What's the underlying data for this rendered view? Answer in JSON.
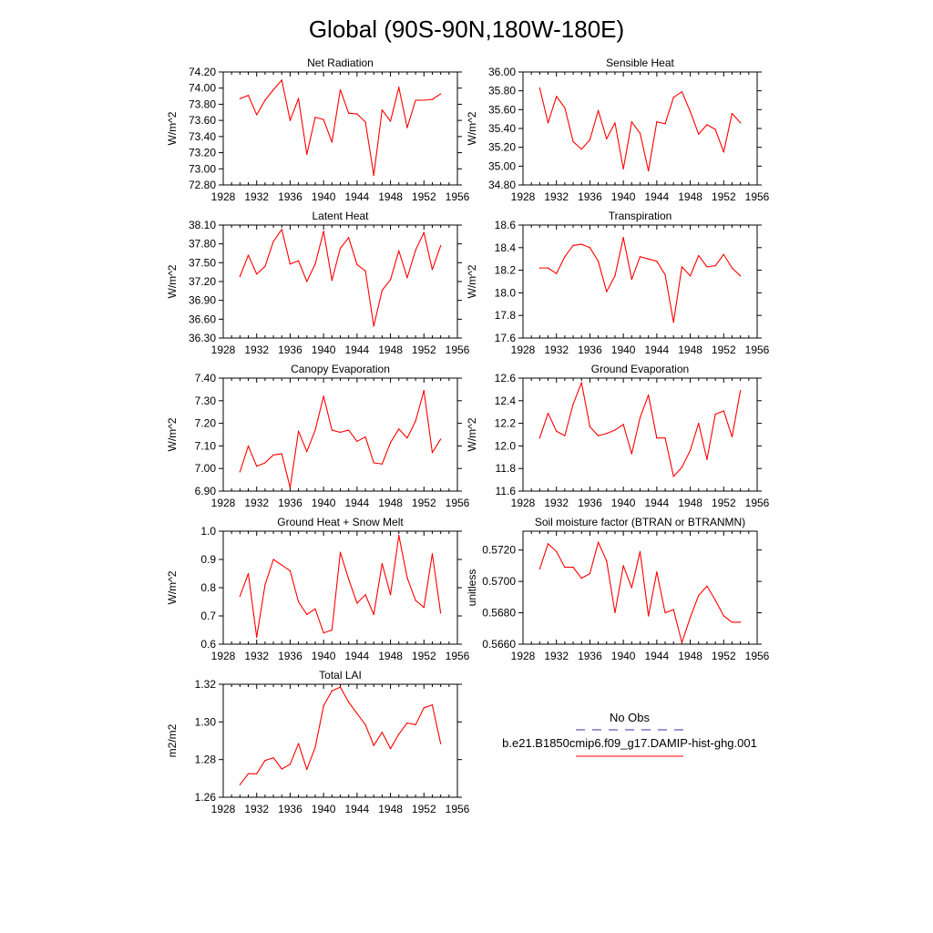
{
  "page_title": "Global (90S-90N,180W-180E)",
  "series_color": "#ff0000",
  "obs_color": "#3333aa",
  "legend": {
    "obs_label": "No Obs",
    "model_label": "b.e21.B1850cmip6.f09_g17.DAMIP-hist-ghg.001"
  },
  "chart_data": [
    {
      "type": "line",
      "title": "Net Radiation",
      "ylabel": "W/m^2",
      "xlim": [
        1928,
        1956
      ],
      "xticks": [
        1928,
        1932,
        1936,
        1940,
        1944,
        1948,
        1952,
        1956
      ],
      "ylim": [
        72.8,
        74.2
      ],
      "yticks": [
        "72.80",
        "73.00",
        "73.20",
        "73.40",
        "73.60",
        "73.80",
        "74.00",
        "74.20"
      ],
      "x": [
        1930,
        1931,
        1932,
        1933,
        1934,
        1935,
        1936,
        1937,
        1938,
        1939,
        1940,
        1941,
        1942,
        1943,
        1944,
        1945,
        1946,
        1947,
        1948,
        1949,
        1950,
        1951,
        1952,
        1953,
        1954
      ],
      "values": [
        73.87,
        73.91,
        73.67,
        73.85,
        73.98,
        74.1,
        73.6,
        73.87,
        73.18,
        73.64,
        73.61,
        73.33,
        73.98,
        73.69,
        73.68,
        73.58,
        72.92,
        73.73,
        73.59,
        74.01,
        73.51,
        73.85,
        73.85,
        73.86,
        73.93
      ]
    },
    {
      "type": "line",
      "title": "Sensible Heat",
      "ylabel": "W/m^2",
      "xlim": [
        1928,
        1956
      ],
      "xticks": [
        1928,
        1932,
        1936,
        1940,
        1944,
        1948,
        1952,
        1956
      ],
      "ylim": [
        34.8,
        36.0
      ],
      "yticks": [
        "34.80",
        "35.00",
        "35.20",
        "35.40",
        "35.60",
        "35.80",
        "36.00"
      ],
      "x": [
        1930,
        1931,
        1932,
        1933,
        1934,
        1935,
        1936,
        1937,
        1938,
        1939,
        1940,
        1941,
        1942,
        1943,
        1944,
        1945,
        1946,
        1947,
        1948,
        1949,
        1950,
        1951,
        1952,
        1953,
        1954
      ],
      "values": [
        35.83,
        35.46,
        35.74,
        35.62,
        35.26,
        35.18,
        35.28,
        35.59,
        35.29,
        35.46,
        34.97,
        35.47,
        35.35,
        34.95,
        35.47,
        35.45,
        35.73,
        35.79,
        35.58,
        35.34,
        35.44,
        35.39,
        35.15,
        35.56,
        35.46
      ]
    },
    {
      "type": "line",
      "title": "Latent Heat",
      "ylabel": "W/m^2",
      "xlim": [
        1928,
        1956
      ],
      "xticks": [
        1928,
        1932,
        1936,
        1940,
        1944,
        1948,
        1952,
        1956
      ],
      "ylim": [
        36.3,
        38.1
      ],
      "yticks": [
        "36.30",
        "36.60",
        "36.90",
        "37.20",
        "37.50",
        "37.80",
        "38.10"
      ],
      "x": [
        1930,
        1931,
        1932,
        1933,
        1934,
        1935,
        1936,
        1937,
        1938,
        1939,
        1940,
        1941,
        1942,
        1943,
        1944,
        1945,
        1946,
        1947,
        1948,
        1949,
        1950,
        1951,
        1952,
        1953,
        1954
      ],
      "values": [
        37.28,
        37.62,
        37.32,
        37.44,
        37.84,
        38.03,
        37.48,
        37.53,
        37.2,
        37.48,
        38.0,
        37.22,
        37.73,
        37.9,
        37.47,
        37.37,
        36.49,
        37.06,
        37.23,
        37.69,
        37.26,
        37.7,
        37.98,
        37.39,
        37.77
      ]
    },
    {
      "type": "line",
      "title": "Transpiration",
      "ylabel": "W/m^2",
      "xlim": [
        1928,
        1956
      ],
      "xticks": [
        1928,
        1932,
        1936,
        1940,
        1944,
        1948,
        1952,
        1956
      ],
      "ylim": [
        17.6,
        18.6
      ],
      "yticks": [
        "17.6",
        "17.8",
        "18.0",
        "18.2",
        "18.4",
        "18.6"
      ],
      "x": [
        1930,
        1931,
        1932,
        1933,
        1934,
        1935,
        1936,
        1937,
        1938,
        1939,
        1940,
        1941,
        1942,
        1943,
        1944,
        1945,
        1946,
        1947,
        1948,
        1949,
        1950,
        1951,
        1952,
        1953,
        1954
      ],
      "values": [
        18.22,
        18.22,
        18.17,
        18.32,
        18.42,
        18.43,
        18.4,
        18.28,
        18.01,
        18.15,
        18.49,
        18.12,
        18.32,
        18.3,
        18.28,
        18.16,
        17.74,
        18.23,
        18.15,
        18.33,
        18.23,
        18.24,
        18.34,
        18.22,
        18.15
      ]
    },
    {
      "type": "line",
      "title": "Canopy Evaporation",
      "ylabel": "W/m^2",
      "xlim": [
        1928,
        1956
      ],
      "xticks": [
        1928,
        1932,
        1936,
        1940,
        1944,
        1948,
        1952,
        1956
      ],
      "ylim": [
        6.9,
        7.4
      ],
      "yticks": [
        "6.90",
        "7.00",
        "7.10",
        "7.20",
        "7.30",
        "7.40"
      ],
      "x": [
        1930,
        1931,
        1932,
        1933,
        1934,
        1935,
        1936,
        1937,
        1938,
        1939,
        1940,
        1941,
        1942,
        1943,
        1944,
        1945,
        1946,
        1947,
        1948,
        1949,
        1950,
        1951,
        1952,
        1953,
        1954
      ],
      "values": [
        6.985,
        7.1,
        7.01,
        7.025,
        7.06,
        7.065,
        6.915,
        7.165,
        7.075,
        7.17,
        7.32,
        7.17,
        7.16,
        7.17,
        7.12,
        7.14,
        7.025,
        7.02,
        7.115,
        7.175,
        7.135,
        7.21,
        7.345,
        7.07,
        7.13
      ]
    },
    {
      "type": "line",
      "title": "Ground Evaporation",
      "ylabel": "W/m^2",
      "xlim": [
        1928,
        1956
      ],
      "xticks": [
        1928,
        1932,
        1936,
        1940,
        1944,
        1948,
        1952,
        1956
      ],
      "ylim": [
        11.6,
        12.6
      ],
      "yticks": [
        "11.6",
        "11.8",
        "12.0",
        "12.2",
        "12.4",
        "12.6"
      ],
      "x": [
        1930,
        1931,
        1932,
        1933,
        1934,
        1935,
        1936,
        1937,
        1938,
        1939,
        1940,
        1941,
        1942,
        1943,
        1944,
        1945,
        1946,
        1947,
        1948,
        1949,
        1950,
        1951,
        1952,
        1953,
        1954
      ],
      "values": [
        12.07,
        12.29,
        12.13,
        12.09,
        12.37,
        12.56,
        12.17,
        12.09,
        12.11,
        12.14,
        12.19,
        11.93,
        12.25,
        12.45,
        12.07,
        12.07,
        11.73,
        11.81,
        11.96,
        12.2,
        11.88,
        12.28,
        12.31,
        12.08,
        12.49
      ]
    },
    {
      "type": "line",
      "title": "Ground Heat + Snow Melt",
      "ylabel": "W/m^2",
      "xlim": [
        1928,
        1956
      ],
      "xticks": [
        1928,
        1932,
        1936,
        1940,
        1944,
        1948,
        1952,
        1956
      ],
      "ylim": [
        0.6,
        1.0
      ],
      "yticks": [
        "0.6",
        "0.7",
        "0.8",
        "0.9",
        "1.0"
      ],
      "x": [
        1930,
        1931,
        1932,
        1933,
        1934,
        1935,
        1936,
        1937,
        1938,
        1939,
        1940,
        1941,
        1942,
        1943,
        1944,
        1945,
        1946,
        1947,
        1948,
        1949,
        1950,
        1951,
        1952,
        1953,
        1954
      ],
      "values": [
        0.77,
        0.85,
        0.625,
        0.81,
        0.9,
        0.88,
        0.86,
        0.75,
        0.705,
        0.725,
        0.64,
        0.65,
        0.925,
        0.83,
        0.745,
        0.775,
        0.705,
        0.885,
        0.775,
        0.985,
        0.835,
        0.755,
        0.73,
        0.92,
        0.71
      ]
    },
    {
      "type": "line",
      "title": "Soil moisture factor (BTRAN or BTRANMN)",
      "ylabel": "unitless",
      "xlim": [
        1928,
        1956
      ],
      "xticks": [
        1928,
        1932,
        1936,
        1940,
        1944,
        1948,
        1952,
        1956
      ],
      "ylim": [
        0.566,
        0.5732
      ],
      "yticks": [
        "0.5660",
        "0.5680",
        "0.5700",
        "0.5720"
      ],
      "x": [
        1930,
        1931,
        1932,
        1933,
        1934,
        1935,
        1936,
        1937,
        1938,
        1939,
        1940,
        1941,
        1942,
        1943,
        1944,
        1945,
        1946,
        1947,
        1948,
        1949,
        1950,
        1951,
        1952,
        1953,
        1954
      ],
      "values": [
        0.5708,
        0.5724,
        0.5719,
        0.5709,
        0.5709,
        0.5702,
        0.5705,
        0.5725,
        0.5713,
        0.568,
        0.571,
        0.5696,
        0.5719,
        0.5678,
        0.5706,
        0.568,
        0.5682,
        0.5661,
        0.5677,
        0.5691,
        0.5697,
        0.5688,
        0.5678,
        0.5674,
        0.5674
      ]
    },
    {
      "type": "line",
      "title": "Total LAI",
      "ylabel": "m2/m2",
      "xlim": [
        1928,
        1956
      ],
      "xticks": [
        1928,
        1932,
        1936,
        1940,
        1944,
        1948,
        1952,
        1956
      ],
      "ylim": [
        1.26,
        1.32
      ],
      "yticks": [
        "1.26",
        "1.28",
        "1.30",
        "1.32"
      ],
      "x": [
        1930,
        1931,
        1932,
        1933,
        1934,
        1935,
        1936,
        1937,
        1938,
        1939,
        1940,
        1941,
        1942,
        1943,
        1944,
        1945,
        1946,
        1947,
        1948,
        1949,
        1950,
        1951,
        1952,
        1953,
        1954
      ],
      "values": [
        1.2667,
        1.2725,
        1.2725,
        1.2795,
        1.281,
        1.275,
        1.2775,
        1.2885,
        1.2748,
        1.2865,
        1.3085,
        1.3165,
        1.3185,
        1.3105,
        1.3045,
        1.2985,
        1.2875,
        1.2945,
        1.2858,
        1.2935,
        1.2995,
        1.2985,
        1.3075,
        1.309,
        1.2885
      ]
    }
  ]
}
